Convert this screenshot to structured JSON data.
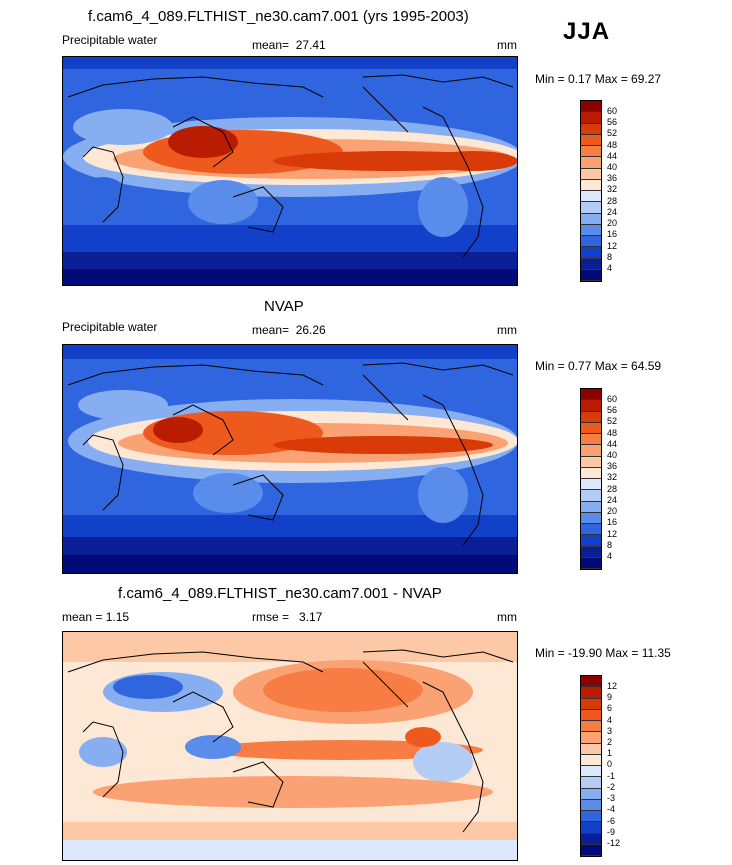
{
  "header": {
    "title": "f.cam6_4_089.FLTHIST_ne30.cam7.001 (yrs 1995-2003)",
    "season": "JJA"
  },
  "panels": [
    {
      "title": "",
      "left_label": "Precipitable water",
      "stat_label": "mean=",
      "stat_value": "27.41",
      "units": "mm",
      "minmax_label": "Min =   0.17 Max =  69.27",
      "levels": [
        "60",
        "56",
        "52",
        "48",
        "44",
        "40",
        "36",
        "32",
        "28",
        "24",
        "20",
        "16",
        "12",
        "8",
        "4"
      ],
      "colors": [
        "#8b0000",
        "#b91c00",
        "#d83a08",
        "#ee5a1e",
        "#f77d45",
        "#fba274",
        "#fdc8a6",
        "#fde8d6",
        "#dce8fb",
        "#b3cdf5",
        "#86aef0",
        "#5a8ceb",
        "#2f66e0",
        "#1240c8",
        "#0a1e96",
        "#000a78"
      ]
    },
    {
      "title": "NVAP",
      "left_label": "Precipitable water",
      "stat_label": "mean=",
      "stat_value": "26.26",
      "units": "mm",
      "minmax_label": "Min =   0.77 Max =  64.59",
      "levels": [
        "60",
        "56",
        "52",
        "48",
        "44",
        "40",
        "36",
        "32",
        "28",
        "24",
        "20",
        "16",
        "12",
        "8",
        "4"
      ],
      "colors": [
        "#8b0000",
        "#b91c00",
        "#d83a08",
        "#ee5a1e",
        "#f77d45",
        "#fba274",
        "#fdc8a6",
        "#fde8d6",
        "#dce8fb",
        "#b3cdf5",
        "#86aef0",
        "#5a8ceb",
        "#2f66e0",
        "#1240c8",
        "#0a1e96",
        "#000a78"
      ]
    },
    {
      "title": "f.cam6_4_089.FLTHIST_ne30.cam7.001 - NVAP",
      "left_label": "mean =    1.15",
      "stat_label": "rmse =",
      "stat_value": "3.17",
      "units": "mm",
      "minmax_label": "Min = -19.90 Max =  11.35",
      "levels": [
        "12",
        "9",
        "6",
        "4",
        "3",
        "2",
        "1",
        "0",
        "-1",
        "-2",
        "-3",
        "-4",
        "-6",
        "-9",
        "-12"
      ],
      "colors": [
        "#8b0000",
        "#b91c00",
        "#d83a08",
        "#ee5a1e",
        "#f77d45",
        "#fba274",
        "#fdc8a6",
        "#fde8d6",
        "#dce8fb",
        "#b3cdf5",
        "#86aef0",
        "#5a8ceb",
        "#2f66e0",
        "#1240c8",
        "#0a1e96",
        "#000a78"
      ]
    }
  ]
}
